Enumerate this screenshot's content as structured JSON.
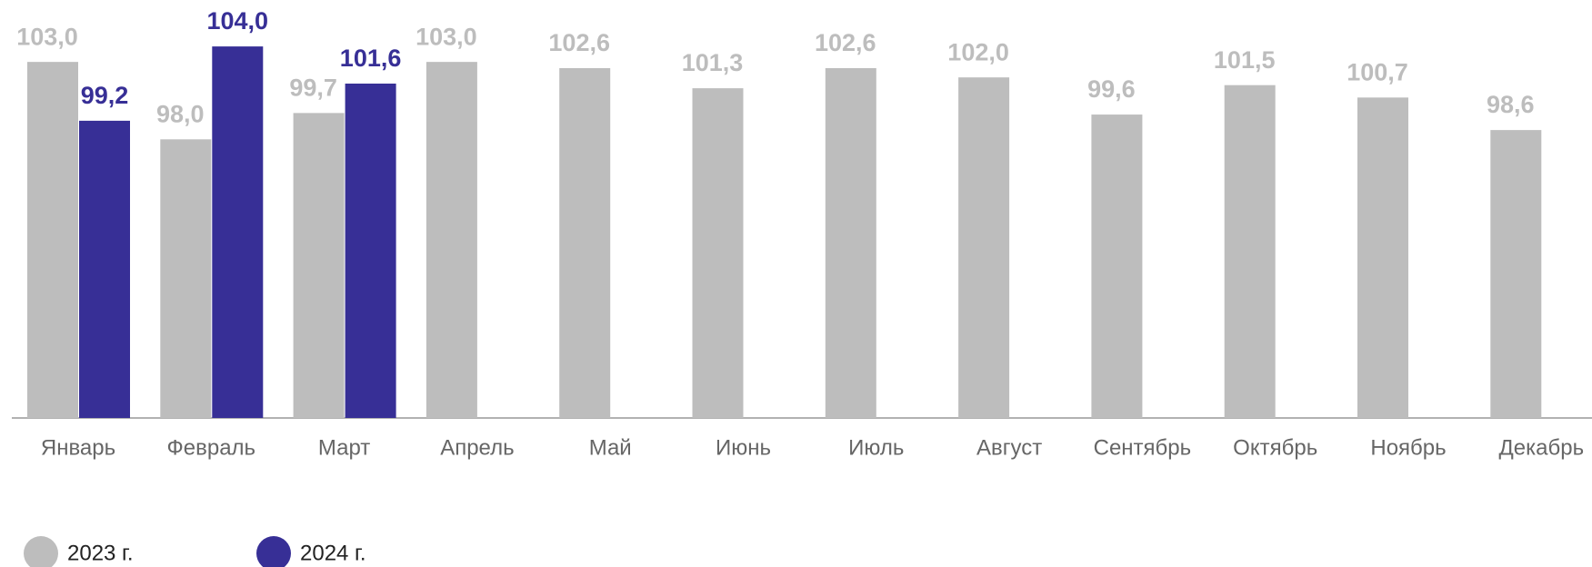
{
  "chart_data": {
    "type": "bar",
    "categories": [
      "Январь",
      "Февраль",
      "Март",
      "Апрель",
      "Май",
      "Июнь",
      "Июль",
      "Август",
      "Сентябрь",
      "Октябрь",
      "Ноябрь",
      "Декабрь"
    ],
    "series": [
      {
        "name": "2023 г.",
        "color": "#bdbdbd",
        "values": [
          103.0,
          98.0,
          99.7,
          103.0,
          102.6,
          101.3,
          102.6,
          102.0,
          99.6,
          101.5,
          100.7,
          98.6
        ],
        "value_labels": [
          "103,0",
          "98,0",
          "99,7",
          "103,0",
          "102,6",
          "101,3",
          "102,6",
          "102,0",
          "99,6",
          "101,5",
          "100,7",
          "98,6"
        ]
      },
      {
        "name": "2024 г.",
        "color": "#372f96",
        "values": [
          99.2,
          104.0,
          101.6,
          null,
          null,
          null,
          null,
          null,
          null,
          null,
          null,
          null
        ],
        "value_labels": [
          "99,2",
          "104,0",
          "101,6",
          null,
          null,
          null,
          null,
          null,
          null,
          null,
          null,
          null
        ]
      }
    ],
    "ylim": [
      80,
      107
    ]
  }
}
